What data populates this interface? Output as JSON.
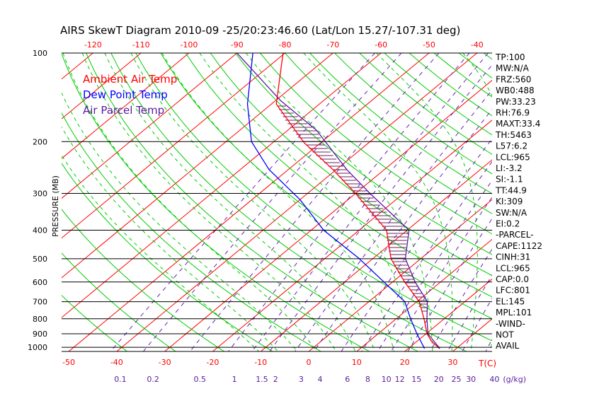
{
  "chart_data": {
    "type": "line",
    "title": "AIRS SkewT Diagram 2010-09 -25/20:23:46.60 (Lat/Lon 15.27/-107.31 deg)",
    "ylabel": "PRESSURE (MB)",
    "xlabel": "T(C)",
    "mixing_ratio_unit": "(g/kg)",
    "pressure_ticks": [
      100,
      200,
      300,
      400,
      500,
      600,
      700,
      800,
      900,
      1000
    ],
    "bottom_temp_ticks": [
      -50,
      -40,
      -30,
      -20,
      -10,
      0,
      10,
      20,
      30
    ],
    "top_temp_ticks": [
      -120,
      -110,
      -100,
      -90,
      -80,
      -70,
      -60,
      -50,
      -40
    ],
    "mixing_ratio_ticks": [
      "0.1",
      "0.2",
      "0.5",
      "1",
      "1.5",
      "2",
      "3",
      "4",
      "6",
      "8",
      "10",
      "12",
      "15",
      "20",
      "25",
      "30",
      "40"
    ],
    "legend": [
      {
        "name": "Ambient Air Temp",
        "color": "#ff0000"
      },
      {
        "name": "Dew Point Temp",
        "color": "#0000ff"
      },
      {
        "name": "Air Parcel Temp",
        "color": "#5a1aa0"
      }
    ],
    "series": [
      {
        "name": "Ambient Air Temp",
        "color": "#ff0000",
        "points": [
          [
            100,
            -80.4
          ],
          [
            149,
            -69
          ],
          [
            202,
            -53.4
          ],
          [
            249,
            -40.7
          ],
          [
            300,
            -30
          ],
          [
            400,
            -14.3
          ],
          [
            500,
            -6.2
          ],
          [
            600,
            2.5
          ],
          [
            700,
            10.5
          ],
          [
            800,
            15.8
          ],
          [
            900,
            20.2
          ],
          [
            950,
            22.8
          ],
          [
            1010,
            26.5
          ]
        ]
      },
      {
        "name": "Dew Point Temp",
        "color": "#0000ff",
        "points": [
          [
            100,
            -86.7
          ],
          [
            149,
            -75
          ],
          [
            200,
            -64.7
          ],
          [
            249,
            -54
          ],
          [
            315,
            -40
          ],
          [
            400,
            -27.4
          ],
          [
            500,
            -12.8
          ],
          [
            600,
            -1.8
          ],
          [
            700,
            7.5
          ],
          [
            800,
            13
          ],
          [
            900,
            18.1
          ],
          [
            1010,
            23.4
          ]
        ]
      },
      {
        "name": "Air Parcel Temp",
        "color": "#5a1aa0",
        "points": [
          [
            100,
            -90
          ],
          [
            145,
            -69
          ],
          [
            183,
            -54
          ],
          [
            249,
            -37.8
          ],
          [
            300,
            -27
          ],
          [
            400,
            -9.6
          ],
          [
            500,
            -3.2
          ],
          [
            600,
            4.7
          ],
          [
            700,
            12.2
          ],
          [
            800,
            16.4
          ],
          [
            900,
            20.4
          ],
          [
            1010,
            26.6
          ]
        ]
      }
    ],
    "grid": true
  },
  "indices": [
    "TP:100",
    "MW:N/A",
    "FRZ:560",
    "WB0:488",
    "PW:33.23",
    "RH:76.9",
    "MAXT:33.4",
    "TH:5463",
    "L57:6.2",
    "LCL:965",
    "LI:-3.2",
    "SI:-1.1",
    "TT:44.9",
    "KI:309",
    "SW:N/A",
    "EI:0.2",
    "-PARCEL-",
    "CAPE:1122",
    "CINH:31",
    "LCL:965",
    "CAP:0.0",
    "LFC:801",
    "EL:145",
    "MPL:101",
    "-WIND-",
    "NOT",
    "AVAIL"
  ]
}
